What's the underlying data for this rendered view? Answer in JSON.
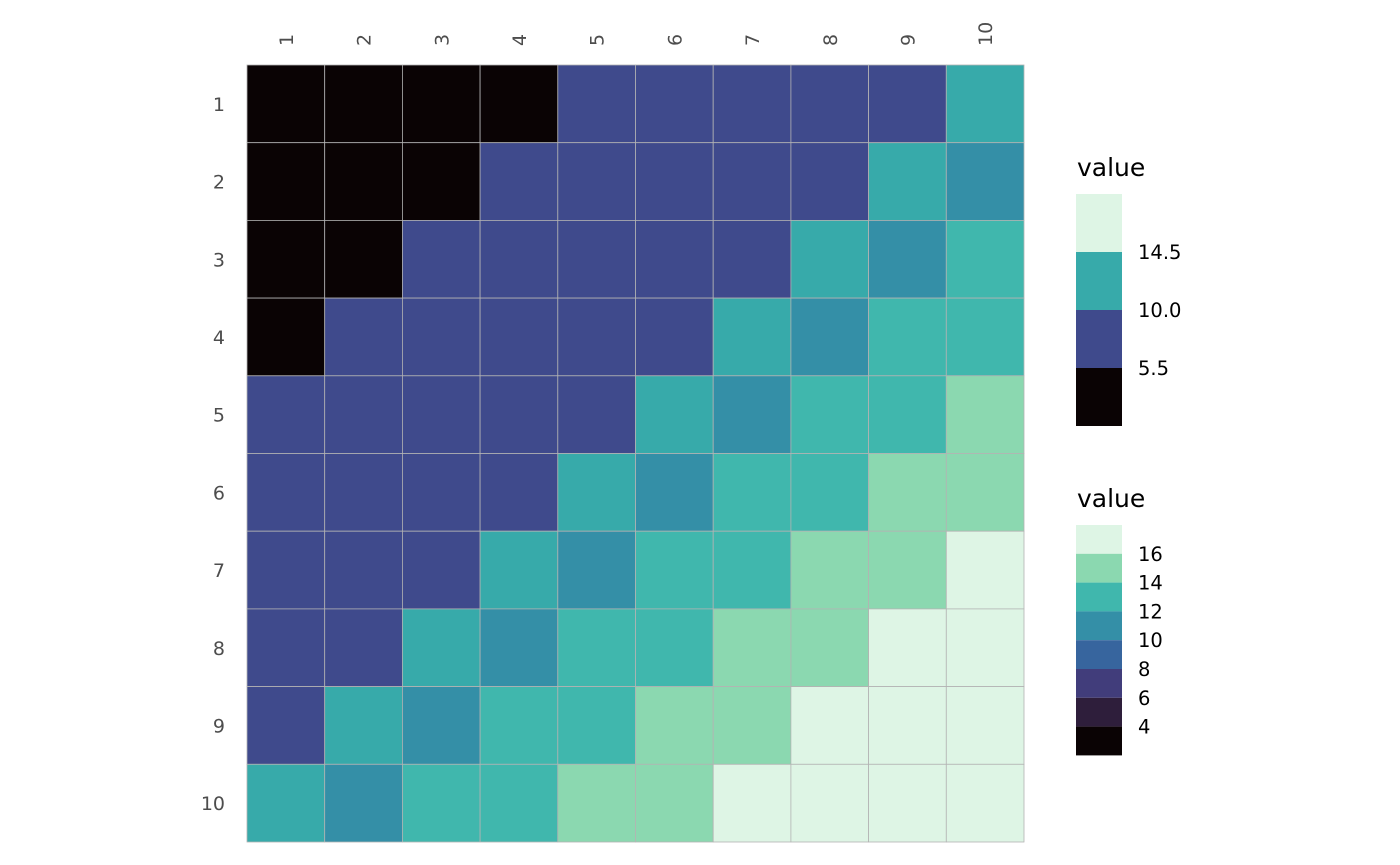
{
  "chart_data": {
    "type": "heatmap",
    "rows": [
      "1",
      "2",
      "3",
      "4",
      "5",
      "6",
      "7",
      "8",
      "9",
      "10"
    ],
    "cols": [
      "1",
      "2",
      "3",
      "4",
      "5",
      "6",
      "7",
      "8",
      "9",
      "10"
    ],
    "values": [
      [
        2,
        3,
        4,
        5,
        6,
        7,
        8,
        9,
        10,
        11
      ],
      [
        3,
        4,
        5,
        6,
        7,
        8,
        9,
        10,
        11,
        12
      ],
      [
        4,
        5,
        6,
        7,
        8,
        9,
        10,
        11,
        12,
        13
      ],
      [
        5,
        6,
        7,
        8,
        9,
        10,
        11,
        12,
        13,
        14
      ],
      [
        6,
        7,
        8,
        9,
        10,
        11,
        12,
        13,
        14,
        15
      ],
      [
        7,
        8,
        9,
        10,
        11,
        12,
        13,
        14,
        15,
        16
      ],
      [
        8,
        9,
        10,
        11,
        12,
        13,
        14,
        15,
        16,
        17
      ],
      [
        9,
        10,
        11,
        12,
        13,
        14,
        15,
        16,
        17,
        18
      ],
      [
        10,
        11,
        12,
        13,
        14,
        15,
        16,
        17,
        18,
        19
      ],
      [
        11,
        12,
        13,
        14,
        15,
        16,
        17,
        18,
        19,
        20
      ]
    ],
    "lower_triangle_scale": {
      "title": "value",
      "breaks": [
        5.5,
        10.0,
        14.5
      ],
      "labels": [
        "5.5",
        "10.0",
        "14.5"
      ],
      "range": [
        1,
        19
      ],
      "colors": [
        "#0a0304",
        "#3f4a8c",
        "#37aaaa",
        "#def5e5"
      ]
    },
    "upper_triangle_scale": {
      "title": "value",
      "breaks": [
        4,
        6,
        8,
        10,
        12,
        14,
        16
      ],
      "labels": [
        "4",
        "6",
        "8",
        "10",
        "12",
        "14",
        "16"
      ],
      "range": [
        3,
        17
      ],
      "colors": [
        "#0a0304",
        "#2e1e3b",
        "#413d7b",
        "#37659e",
        "#348fa7",
        "#40b7ad",
        "#8bd8b0",
        "#def5e5"
      ]
    },
    "grid": false,
    "legend_position": "right"
  }
}
